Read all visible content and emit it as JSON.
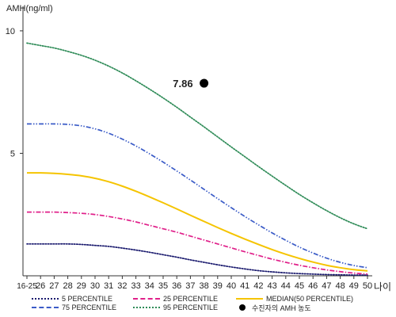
{
  "chart_data": {
    "type": "line",
    "ylabel": "AMH(ng/ml)",
    "xlabel": "나이",
    "x": [
      "16-25",
      "26",
      "27",
      "28",
      "29",
      "30",
      "31",
      "32",
      "33",
      "34",
      "35",
      "36",
      "37",
      "38",
      "39",
      "40",
      "41",
      "42",
      "43",
      "44",
      "45",
      "46",
      "47",
      "48",
      "49",
      "50"
    ],
    "y_ticks": [
      5,
      10
    ],
    "ylim": [
      0,
      11
    ],
    "grid": false,
    "series": [
      {
        "name": "5 PERCENTILE",
        "color": "#1a1a6e",
        "style": "dotted",
        "values": [
          1.3,
          1.3,
          1.3,
          1.3,
          1.28,
          1.24,
          1.2,
          1.13,
          1.05,
          0.96,
          0.86,
          0.76,
          0.65,
          0.55,
          0.45,
          0.36,
          0.28,
          0.21,
          0.16,
          0.12,
          0.09,
          0.07,
          0.05,
          0.04,
          0.03,
          0.03
        ]
      },
      {
        "name": "25 PERCENTILE",
        "color": "#e0208a",
        "style": "dashdot",
        "values": [
          2.6,
          2.6,
          2.6,
          2.58,
          2.55,
          2.5,
          2.42,
          2.32,
          2.2,
          2.06,
          1.92,
          1.78,
          1.62,
          1.46,
          1.3,
          1.14,
          0.98,
          0.83,
          0.68,
          0.55,
          0.43,
          0.33,
          0.24,
          0.17,
          0.11,
          0.07
        ]
      },
      {
        "name": "MEDIAN(50 PERCENTILE)",
        "color": "#f5c400",
        "style": "solid",
        "values": [
          4.2,
          4.2,
          4.18,
          4.14,
          4.08,
          3.98,
          3.84,
          3.66,
          3.45,
          3.22,
          2.98,
          2.73,
          2.47,
          2.22,
          1.97,
          1.73,
          1.5,
          1.28,
          1.07,
          0.88,
          0.71,
          0.56,
          0.43,
          0.33,
          0.25,
          0.2
        ]
      },
      {
        "name": "75 PERCENTILE",
        "color": "#3a5bc7",
        "style": "dashdotdot",
        "values": [
          6.2,
          6.2,
          6.2,
          6.18,
          6.12,
          6.0,
          5.82,
          5.58,
          5.3,
          4.98,
          4.64,
          4.28,
          3.91,
          3.53,
          3.15,
          2.78,
          2.42,
          2.08,
          1.75,
          1.45,
          1.17,
          0.93,
          0.72,
          0.55,
          0.42,
          0.33
        ]
      },
      {
        "name": "95 PERCENTILE",
        "color": "#2e8b57",
        "style": "dotted",
        "values": [
          9.5,
          9.4,
          9.3,
          9.16,
          9.0,
          8.8,
          8.56,
          8.28,
          7.96,
          7.62,
          7.26,
          6.88,
          6.48,
          6.08,
          5.67,
          5.26,
          4.86,
          4.46,
          4.07,
          3.69,
          3.32,
          2.98,
          2.66,
          2.37,
          2.12,
          1.92
        ]
      }
    ],
    "highlight": {
      "name": "수진자의 AMH 농도",
      "x": "38",
      "y": 7.86,
      "label": "7.86",
      "color": "#000000"
    }
  }
}
